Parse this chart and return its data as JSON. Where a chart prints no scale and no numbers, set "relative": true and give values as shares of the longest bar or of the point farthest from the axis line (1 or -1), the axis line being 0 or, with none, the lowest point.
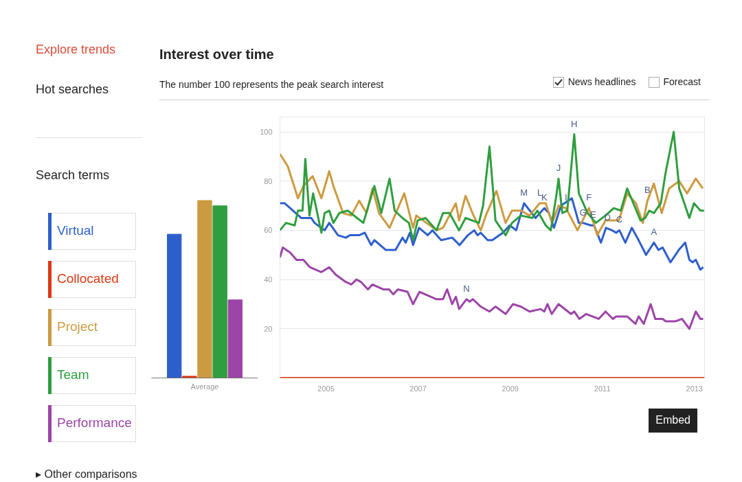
{
  "chart_data": [
    {
      "type": "other",
      "annotations": [
        "Explore trends",
        "Hot searches",
        "Search terms",
        "▸ Other comparisons"
      ]
    },
    {
      "type": "bar",
      "xlabel": "Average",
      "categories": [
        null,
        null,
        null,
        null,
        null
      ],
      "relative": true,
      "values": [
        0.81,
        0.01,
        1,
        0.97,
        0.44
      ],
      "colors": [
        "#2d5fcc",
        "#dc3912",
        "#cc9a40",
        "#2e9e3e",
        "#9c44a8"
      ]
    },
    {
      "type": "line",
      "title": "Interest over time",
      "subtitle": "The number 100 represents the peak search interest",
      "legend": "left",
      "grid": "y",
      "xlim": [
        2004,
        2013.22
      ],
      "ylim": [
        0,
        106
      ],
      "xticks": [
        2005,
        2007,
        2009,
        2011,
        2013
      ],
      "yticks": [
        {
          "value": 0,
          "label": null
        },
        20,
        40,
        60,
        80,
        100
      ],
      "series": [
        {
          "name": "Virtual",
          "color": "#2d5fcc",
          "x": [
            2004.0,
            2004.1,
            2004.46,
            2004.68,
            2004.75,
            2004.97,
            2005.07,
            2005.26,
            2005.43,
            2005.52,
            2005.72,
            2005.84,
            2005.98,
            2006.05,
            2006.3,
            2006.51,
            2006.66,
            2006.73,
            2006.82,
            2006.89,
            2007.02,
            2007.21,
            2007.31,
            2007.5,
            2007.74,
            2007.9,
            2008.08,
            2008.22,
            2008.29,
            2008.36,
            2008.51,
            2008.61,
            2008.84,
            2008.99,
            2009.13,
            2009.3,
            2009.55,
            2009.74,
            2009.84,
            2009.95,
            2010.1,
            2010.34,
            2010.49,
            2010.58,
            2010.75,
            2010.82,
            2010.97,
            2011.08,
            2011.21,
            2011.3,
            2011.37,
            2011.5,
            2011.64,
            2011.76,
            2011.95,
            2012.12,
            2012.22,
            2012.31,
            2012.48,
            2012.66,
            2012.8,
            2012.89,
            2012.96,
            2013.03,
            2013.13,
            2013.19
          ],
          "values": [
            71,
            71,
            65,
            65,
            63,
            60,
            63,
            58,
            57,
            58,
            58,
            59,
            54,
            56,
            52,
            52,
            57,
            55,
            59,
            54,
            61,
            58,
            60,
            56,
            57,
            54,
            58,
            60,
            58,
            59,
            56,
            56,
            59,
            62,
            60,
            71,
            65,
            69,
            67,
            61,
            70,
            73,
            63,
            63,
            62,
            62,
            55,
            61,
            60,
            59,
            60,
            55,
            61,
            57,
            50,
            55,
            52,
            53,
            47,
            52,
            55,
            48,
            47,
            48,
            44,
            45
          ]
        },
        {
          "name": "Collocated",
          "color": "#dc3912",
          "x": [
            2004.0,
            2013.22
          ],
          "values": [
            0,
            0
          ]
        },
        {
          "name": "Project",
          "color": "#cc9a40",
          "x": [
            2004.0,
            2004.17,
            2004.39,
            2004.51,
            2004.71,
            2004.9,
            2005.07,
            2005.16,
            2005.37,
            2005.55,
            2005.72,
            2005.88,
            2006.01,
            2006.15,
            2006.38,
            2006.7,
            2006.89,
            2006.96,
            2007.4,
            2007.54,
            2007.82,
            2007.89,
            2008.03,
            2008.18,
            2008.36,
            2008.47,
            2008.7,
            2008.9,
            2009.04,
            2009.23,
            2009.42,
            2009.64,
            2009.77,
            2009.91,
            2010.05,
            2010.21,
            2010.46,
            2010.71,
            2010.89,
            2011.07,
            2011.36,
            2011.54,
            2011.73,
            2011.88,
            2011.98,
            2012.12,
            2012.29,
            2012.45,
            2012.67,
            2012.84,
            2013.03,
            2013.18
          ],
          "values": [
            91,
            86,
            73,
            78,
            82,
            73,
            84,
            78,
            67,
            66,
            72,
            67,
            77,
            67,
            61,
            75,
            61,
            66,
            60,
            61,
            71,
            64,
            74,
            67,
            60,
            66,
            76,
            63,
            68,
            68,
            66,
            71,
            71,
            63,
            70,
            69,
            60,
            69,
            58,
            64,
            64,
            75,
            71,
            63,
            72,
            79,
            67,
            77,
            80,
            75,
            81,
            77
          ]
        },
        {
          "name": "Team",
          "color": "#2e9e3e",
          "x": [
            2004.0,
            2004.13,
            2004.32,
            2004.39,
            2004.49,
            2004.55,
            2004.64,
            2004.72,
            2004.9,
            2004.97,
            2005.07,
            2005.16,
            2005.29,
            2005.47,
            2005.81,
            2006.05,
            2006.2,
            2006.38,
            2006.49,
            2006.66,
            2006.8,
            2006.89,
            2006.99,
            2007.16,
            2007.4,
            2007.54,
            2007.68,
            2007.89,
            2008.03,
            2008.32,
            2008.41,
            2008.55,
            2008.68,
            2008.9,
            2009.04,
            2009.23,
            2009.48,
            2009.59,
            2009.77,
            2009.88,
            2010.0,
            2010.05,
            2010.13,
            2010.24,
            2010.39,
            2010.49,
            2010.68,
            2010.86,
            2011.07,
            2011.25,
            2011.4,
            2011.54,
            2011.83,
            2011.93,
            2012.02,
            2012.12,
            2012.27,
            2012.37,
            2012.55,
            2012.67,
            2012.89,
            2012.99,
            2013.13,
            2013.21
          ],
          "values": [
            60,
            63,
            62,
            68,
            68,
            89,
            66,
            75,
            59,
            67,
            68,
            63,
            67,
            68,
            63,
            78,
            67,
            81,
            68,
            65,
            63,
            56,
            64,
            65,
            60,
            67,
            67,
            60,
            65,
            63,
            70,
            94,
            64,
            58,
            63,
            66,
            65,
            68,
            62,
            60,
            74,
            81,
            67,
            68,
            99,
            75,
            67,
            63,
            66,
            69,
            68,
            77,
            64,
            65,
            68,
            67,
            71,
            83,
            100,
            77,
            65,
            71,
            68,
            68
          ]
        },
        {
          "name": "Performance",
          "color": "#9c44a8",
          "x": [
            2004.0,
            2004.06,
            2004.22,
            2004.36,
            2004.51,
            2004.65,
            2004.9,
            2005.07,
            2005.21,
            2005.43,
            2005.55,
            2005.66,
            2005.76,
            2005.91,
            2006.01,
            2006.24,
            2006.37,
            2006.46,
            2006.56,
            2006.77,
            2006.89,
            2007.03,
            2007.4,
            2007.54,
            2007.63,
            2007.74,
            2007.82,
            2007.89,
            2008.05,
            2008.12,
            2008.19,
            2008.36,
            2008.55,
            2008.68,
            2008.9,
            2009.06,
            2009.23,
            2009.42,
            2009.66,
            2009.74,
            2009.81,
            2009.9,
            2010.05,
            2010.32,
            2010.39,
            2010.5,
            2010.65,
            2010.92,
            2011.07,
            2011.23,
            2011.3,
            2011.54,
            2011.72,
            2011.79,
            2011.9,
            2012.05,
            2012.15,
            2012.31,
            2012.38,
            2012.58,
            2012.73,
            2012.89,
            2013.03,
            2013.13,
            2013.19
          ],
          "values": [
            49,
            53,
            51,
            48,
            48,
            45,
            43,
            45,
            42,
            39,
            38,
            40,
            39,
            36,
            38,
            36,
            36,
            34,
            36,
            35,
            30,
            35,
            32,
            32,
            36,
            30,
            33,
            28,
            32,
            31,
            32,
            29,
            27,
            29,
            26,
            30,
            29,
            27,
            28,
            27,
            30,
            26,
            30,
            26,
            27,
            24,
            26,
            24,
            27,
            24,
            25,
            25,
            22,
            25,
            22,
            30,
            24,
            24,
            23,
            23,
            24,
            20,
            27,
            24,
            24
          ]
        }
      ],
      "annotations": [
        {
          "text": "N",
          "x": 2008.05,
          "y": 32
        },
        {
          "text": "M",
          "x": 2009.3,
          "y": 71
        },
        {
          "text": "L",
          "x": 2009.64,
          "y": 71
        },
        {
          "text": "K",
          "x": 2009.74,
          "y": 69
        },
        {
          "text": "J",
          "x": 2010.05,
          "y": 81
        },
        {
          "text": "I",
          "x": 2010.21,
          "y": 69
        },
        {
          "text": "H",
          "x": 2010.39,
          "y": 99
        },
        {
          "text": "G",
          "x": 2010.58,
          "y": 63
        },
        {
          "text": "E",
          "x": 2010.8,
          "y": 62
        },
        {
          "text": "F",
          "x": 2010.71,
          "y": 69
        },
        {
          "text": "D",
          "x": 2011.11,
          "y": 61
        },
        {
          "text": "C",
          "x": 2011.37,
          "y": 60
        },
        {
          "text": "B",
          "x": 2011.98,
          "y": 72
        },
        {
          "text": "A",
          "x": 2012.12,
          "y": 55
        },
        "News headlines",
        "Forecast",
        "Embed"
      ]
    }
  ]
}
